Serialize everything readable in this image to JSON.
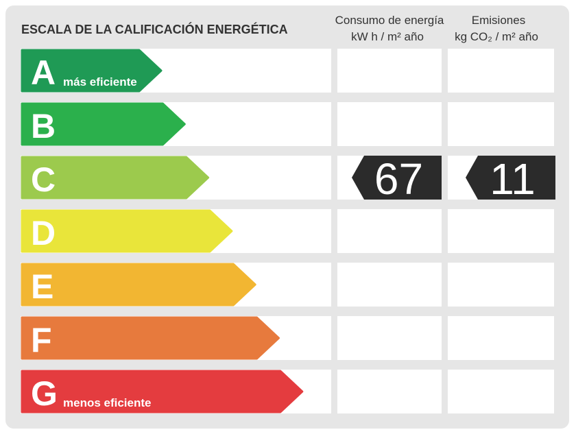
{
  "header": {
    "title": "ESCALA DE LA CALIFICACIÓN ENERGÉTICA",
    "energy_title": "Consumo de energía",
    "energy_unit": "kW h  / m² año",
    "emissions_title": "Emisiones",
    "emissions_unit": "kg CO₂  / m² año"
  },
  "rows": [
    {
      "letter": "A",
      "note": "más eficiente"
    },
    {
      "letter": "B"
    },
    {
      "letter": "C",
      "energy": 67,
      "emissions": 11
    },
    {
      "letter": "D"
    },
    {
      "letter": "E"
    },
    {
      "letter": "F"
    },
    {
      "letter": "G",
      "note": "menos eficiente"
    }
  ]
}
